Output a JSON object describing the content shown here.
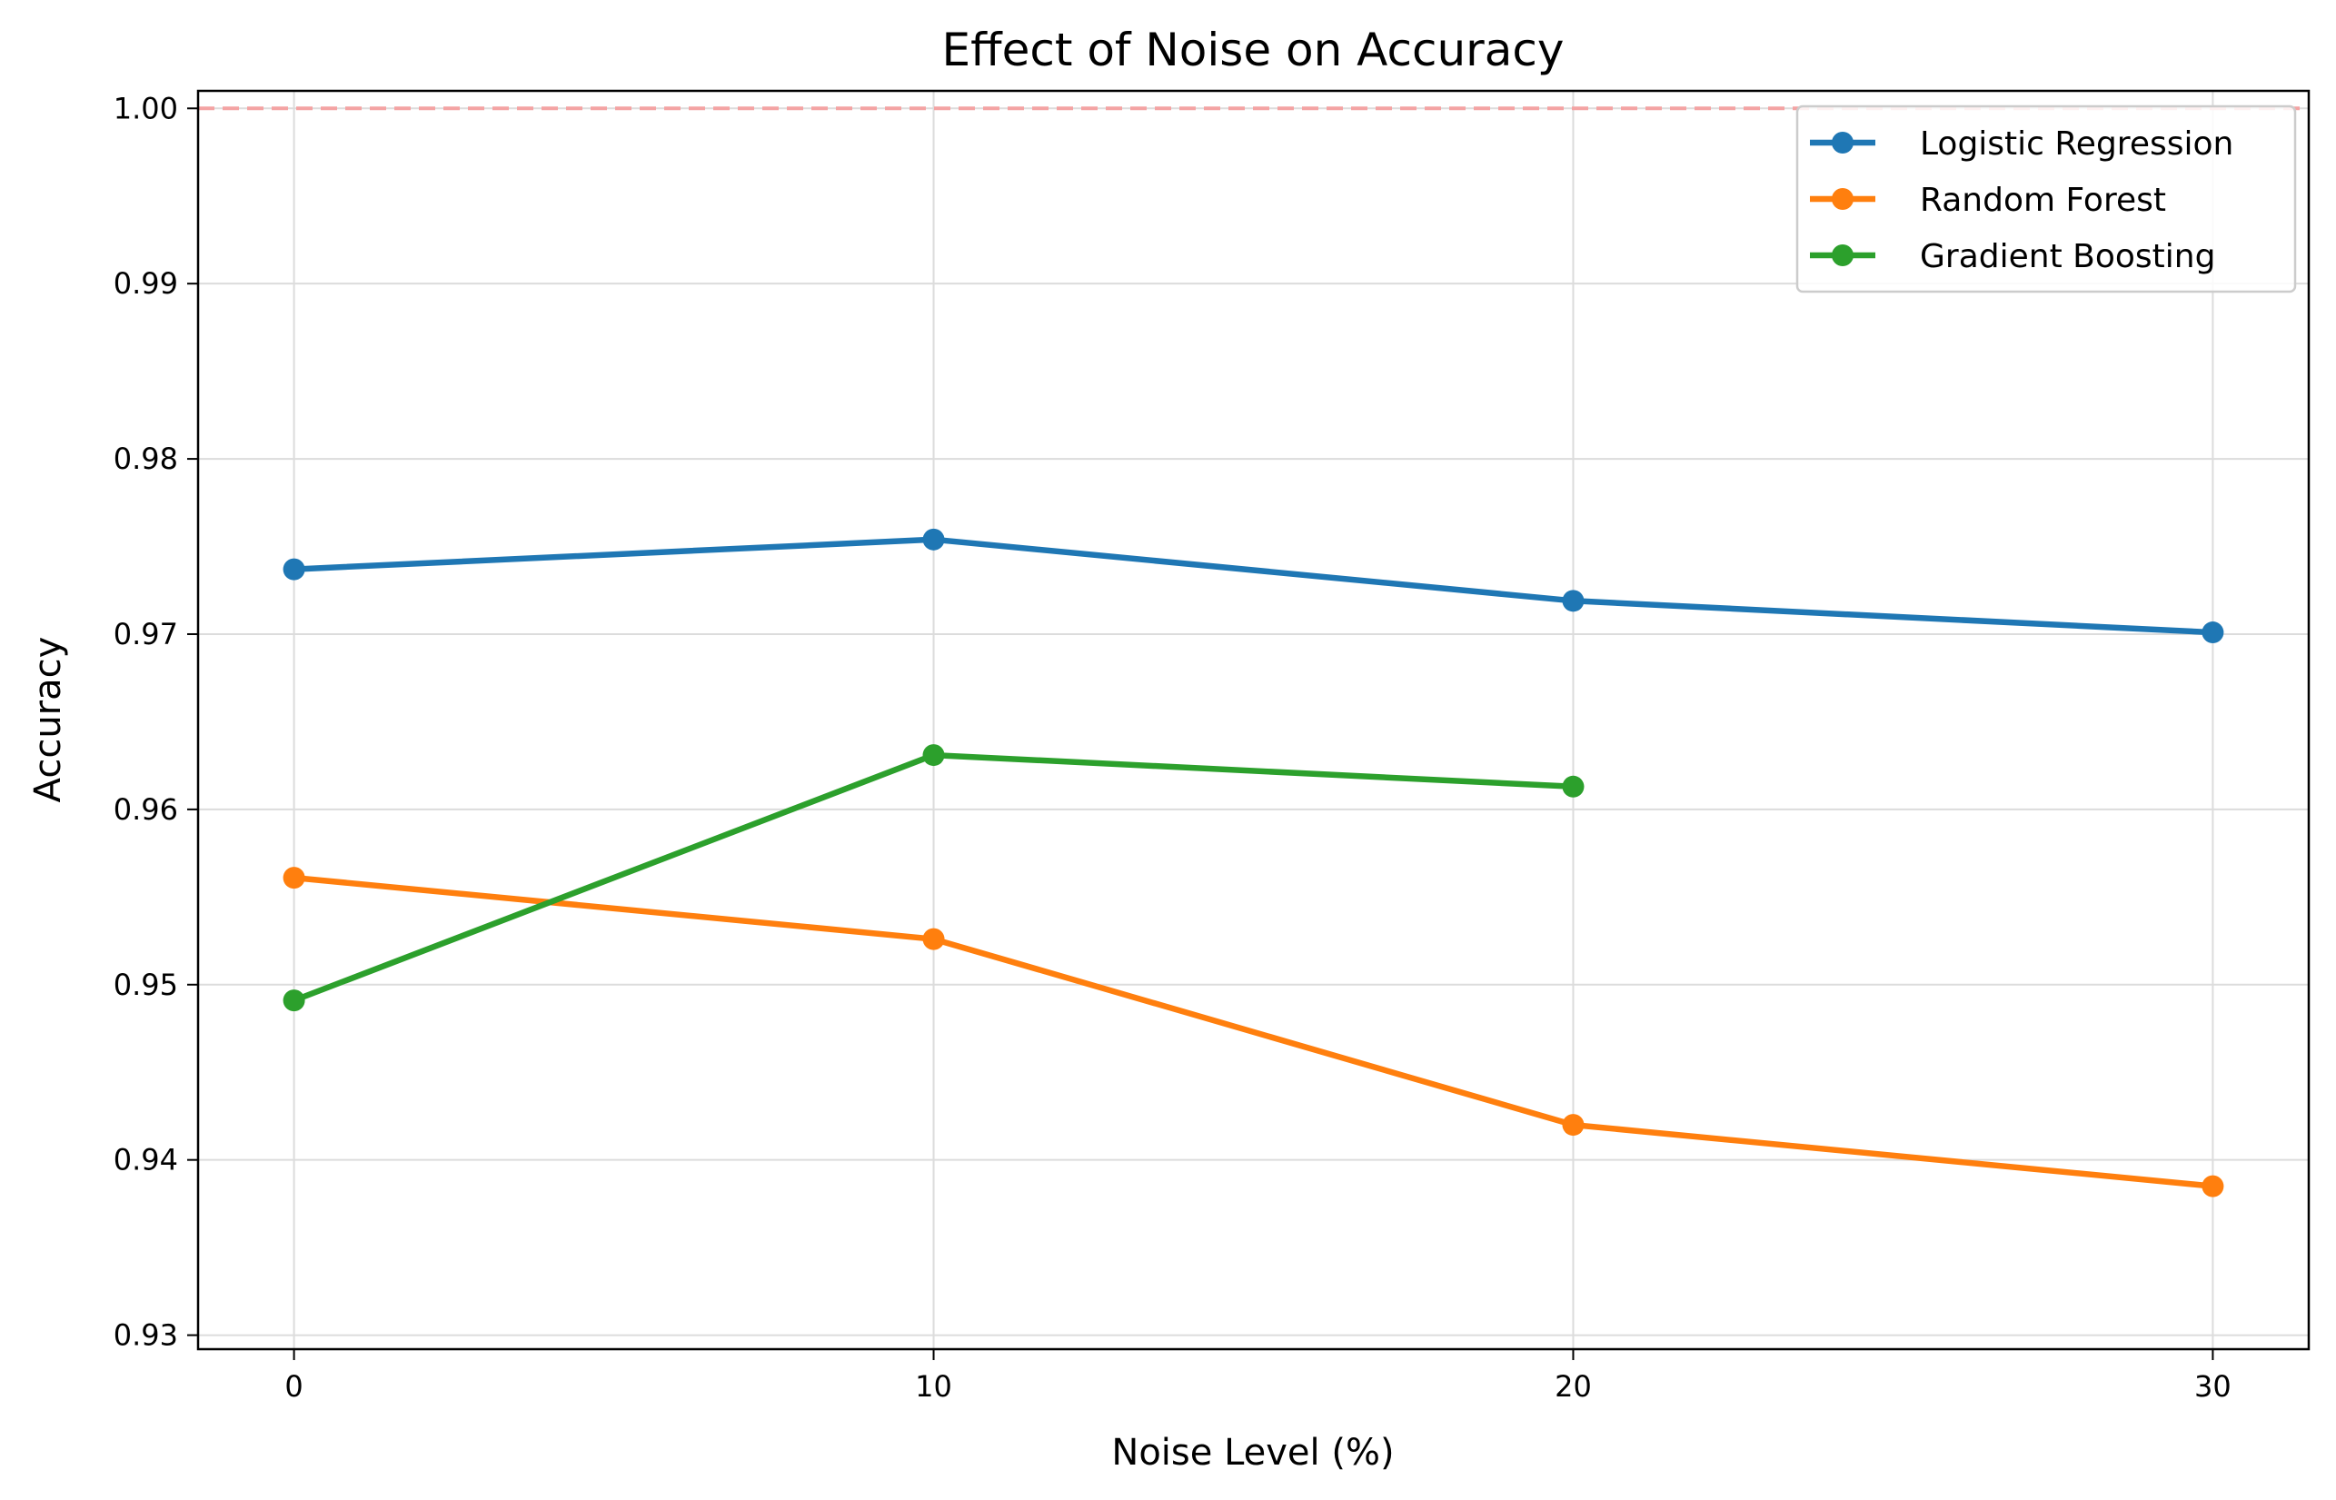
{
  "chart_data": {
    "type": "line",
    "title": "Effect of Noise on Accuracy",
    "xlabel": "Noise Level (%)",
    "ylabel": "Accuracy",
    "x_ticks": [
      0,
      10,
      20,
      30
    ],
    "y_ticks": [
      0.93,
      0.94,
      0.95,
      0.96,
      0.97,
      0.98,
      0.99,
      1.0
    ],
    "y_tick_labels": [
      "0.93",
      "0.94",
      "0.95",
      "0.96",
      "0.97",
      "0.98",
      "0.99",
      "1.00"
    ],
    "xlim": [
      -1.5,
      31.5
    ],
    "ylim": [
      0.9292,
      1.001
    ],
    "grid": true,
    "legend_position": "top-right",
    "reference_line": {
      "y": 1.0,
      "color": "#f4a3a3",
      "style": "dashed"
    },
    "series": [
      {
        "name": "Logistic Regression",
        "color": "#1f77b4",
        "x": [
          0,
          10,
          20,
          30
        ],
        "y": [
          0.9737,
          0.9754,
          0.9719,
          0.9701
        ]
      },
      {
        "name": "Random Forest",
        "color": "#ff7f0e",
        "x": [
          0,
          10,
          20,
          30
        ],
        "y": [
          0.9561,
          0.9526,
          0.942,
          0.9385
        ]
      },
      {
        "name": "Gradient Boosting",
        "color": "#2ca02c",
        "x": [
          0,
          10,
          20
        ],
        "y": [
          0.9491,
          0.9631,
          0.9613
        ]
      }
    ]
  }
}
